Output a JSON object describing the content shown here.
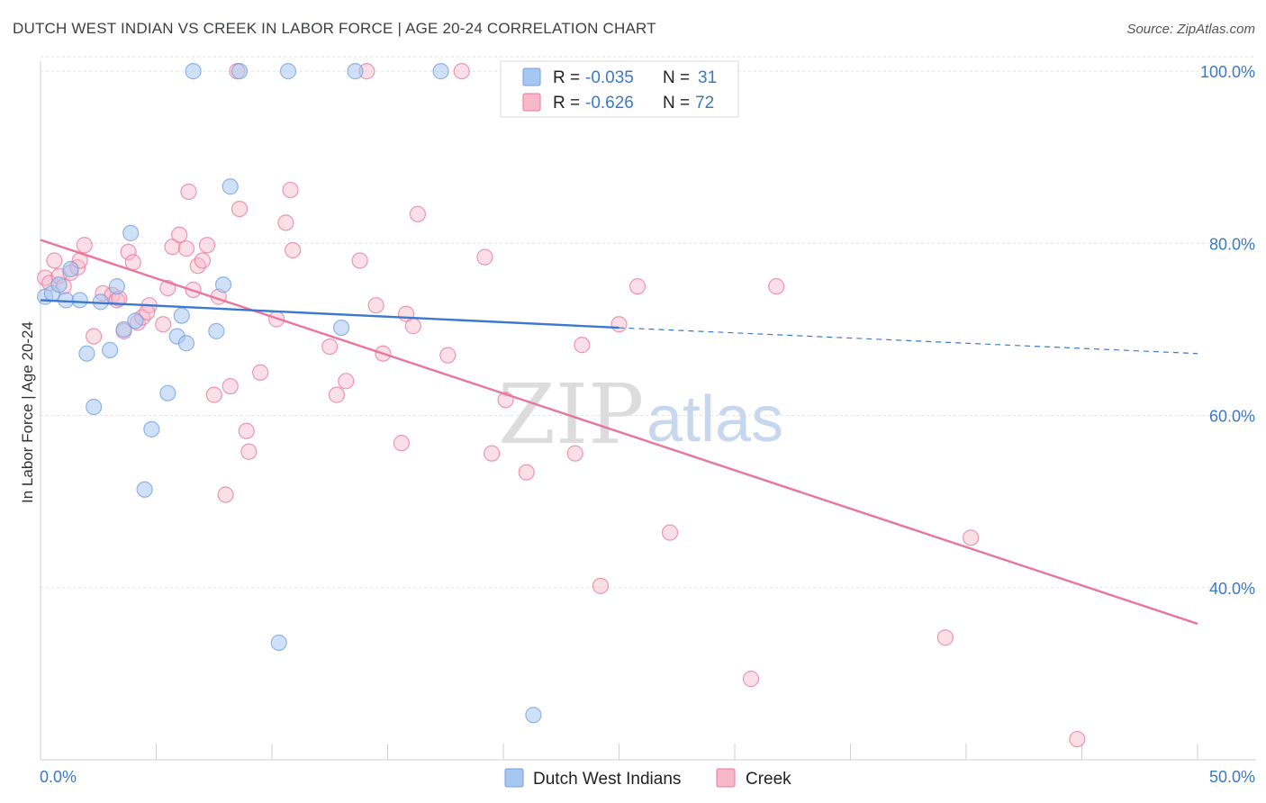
{
  "title": "DUTCH WEST INDIAN VS CREEK IN LABOR FORCE | AGE 20-24 CORRELATION CHART",
  "source": "Source: ZipAtlas.com",
  "watermark": {
    "zip": "ZIP",
    "atlas": "atlas"
  },
  "legend_top": {
    "r_label": "R =",
    "n_label": "N =",
    "rows": [
      {
        "r": "-0.035",
        "n": "31",
        "color": "#a8c7f0"
      },
      {
        "r": "-0.626",
        "n": "72",
        "color": "#f7b8ca"
      }
    ]
  },
  "chart_data": {
    "type": "scatter",
    "title": "DUTCH WEST INDIAN VS CREEK IN LABOR FORCE | AGE 20-24 CORRELATION CHART",
    "xlabel": "",
    "ylabel": "In Labor Force | Age 20-24",
    "xlim": [
      0,
      50
    ],
    "ylim": [
      20,
      102
    ],
    "x_tick_labels": [
      "0.0%",
      "50.0%"
    ],
    "y_ticks": [
      40,
      60,
      80,
      100
    ],
    "y_tick_labels": [
      "40.0%",
      "60.0%",
      "80.0%",
      "100.0%"
    ],
    "grid": true,
    "legend_position": "top-center",
    "series": [
      {
        "name": "Dutch West Indians",
        "color": "#6f9fe0",
        "fill": "#a8c7f0",
        "R": -0.035,
        "N": 31,
        "trend": {
          "x0": 0,
          "y0": 73.4,
          "x1": 25,
          "y1": 70.2,
          "dash_x1": 50,
          "dash_y1": 67.2
        },
        "points": [
          [
            0.2,
            73.8
          ],
          [
            0.5,
            74.2
          ],
          [
            0.8,
            75.2
          ],
          [
            1.1,
            73.4
          ],
          [
            1.3,
            77.0
          ],
          [
            1.7,
            73.4
          ],
          [
            2.0,
            67.2
          ],
          [
            2.3,
            61.0
          ],
          [
            2.6,
            73.2
          ],
          [
            3.0,
            67.6
          ],
          [
            3.3,
            75.0
          ],
          [
            3.6,
            70.0
          ],
          [
            3.9,
            81.2
          ],
          [
            4.1,
            71.0
          ],
          [
            4.5,
            51.4
          ],
          [
            4.8,
            58.4
          ],
          [
            5.5,
            62.6
          ],
          [
            5.9,
            69.2
          ],
          [
            6.1,
            71.6
          ],
          [
            6.3,
            68.4
          ],
          [
            7.6,
            69.8
          ],
          [
            7.9,
            75.2
          ],
          [
            8.2,
            86.6
          ],
          [
            10.3,
            33.6
          ],
          [
            13.0,
            70.2
          ],
          [
            21.3,
            25.2
          ],
          [
            6.6,
            100.0
          ],
          [
            8.6,
            100.0
          ],
          [
            10.7,
            100.0
          ],
          [
            13.6,
            100.0
          ],
          [
            17.3,
            100.0
          ]
        ]
      },
      {
        "name": "Creek",
        "color": "#e8769c",
        "fill": "#f7b8ca",
        "R": -0.626,
        "N": 72,
        "trend": {
          "x0": 0,
          "y0": 80.4,
          "x1": 50,
          "y1": 35.8
        },
        "points": [
          [
            0.2,
            76.0
          ],
          [
            0.4,
            75.4
          ],
          [
            0.6,
            78.0
          ],
          [
            0.8,
            76.2
          ],
          [
            1.0,
            75.0
          ],
          [
            1.3,
            76.6
          ],
          [
            1.6,
            77.2
          ],
          [
            1.7,
            78.0
          ],
          [
            1.9,
            79.8
          ],
          [
            2.3,
            69.2
          ],
          [
            2.7,
            74.2
          ],
          [
            3.1,
            74.0
          ],
          [
            3.3,
            73.4
          ],
          [
            3.6,
            69.8
          ],
          [
            3.8,
            79.0
          ],
          [
            4.0,
            77.8
          ],
          [
            4.2,
            70.8
          ],
          [
            4.4,
            71.4
          ],
          [
            4.7,
            72.8
          ],
          [
            5.3,
            70.6
          ],
          [
            5.5,
            74.8
          ],
          [
            5.7,
            79.6
          ],
          [
            6.0,
            81.0
          ],
          [
            6.3,
            79.4
          ],
          [
            6.4,
            86.0
          ],
          [
            6.6,
            74.6
          ],
          [
            6.8,
            77.4
          ],
          [
            7.0,
            78.0
          ],
          [
            7.2,
            79.8
          ],
          [
            7.5,
            62.4
          ],
          [
            7.7,
            73.8
          ],
          [
            8.0,
            50.8
          ],
          [
            8.2,
            63.4
          ],
          [
            8.6,
            84.0
          ],
          [
            8.9,
            58.2
          ],
          [
            9.0,
            55.8
          ],
          [
            9.5,
            65.0
          ],
          [
            10.2,
            71.2
          ],
          [
            10.6,
            82.4
          ],
          [
            10.8,
            86.2
          ],
          [
            10.9,
            79.2
          ],
          [
            12.5,
            68.0
          ],
          [
            12.8,
            62.4
          ],
          [
            13.2,
            64.0
          ],
          [
            13.8,
            78.0
          ],
          [
            14.5,
            72.8
          ],
          [
            14.8,
            67.2
          ],
          [
            15.6,
            56.8
          ],
          [
            15.8,
            71.8
          ],
          [
            16.1,
            70.4
          ],
          [
            16.3,
            83.4
          ],
          [
            17.6,
            67.0
          ],
          [
            19.2,
            78.4
          ],
          [
            19.5,
            55.6
          ],
          [
            20.1,
            61.8
          ],
          [
            21.0,
            53.4
          ],
          [
            23.1,
            55.6
          ],
          [
            23.4,
            68.2
          ],
          [
            24.2,
            40.2
          ],
          [
            25.0,
            70.6
          ],
          [
            27.2,
            46.4
          ],
          [
            30.7,
            29.4
          ],
          [
            31.8,
            75.0
          ],
          [
            39.1,
            34.2
          ],
          [
            40.2,
            45.8
          ],
          [
            44.8,
            22.4
          ],
          [
            8.5,
            100.0
          ],
          [
            14.1,
            100.0
          ],
          [
            18.2,
            100.0
          ],
          [
            25.8,
            75.0
          ],
          [
            4.6,
            72.0
          ],
          [
            3.4,
            73.6
          ]
        ]
      }
    ]
  }
}
